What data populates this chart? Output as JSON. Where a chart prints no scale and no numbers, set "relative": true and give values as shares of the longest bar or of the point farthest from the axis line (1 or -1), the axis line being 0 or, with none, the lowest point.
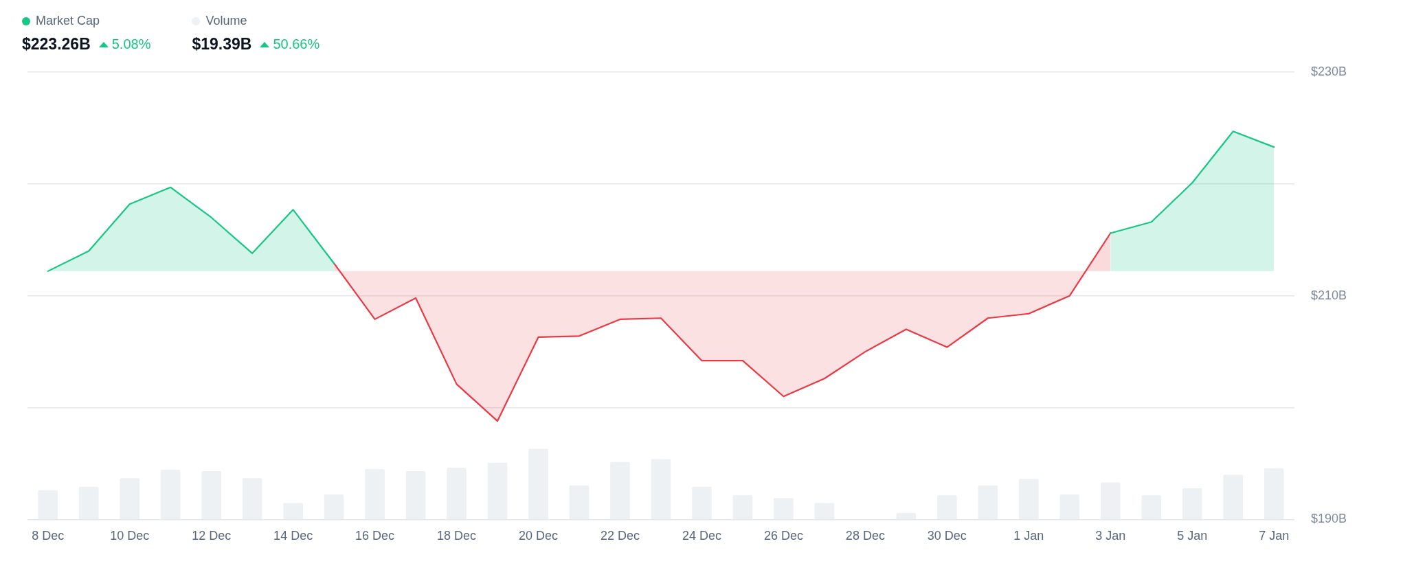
{
  "chart_data": [
    {
      "type": "area",
      "legend": "top left",
      "grid": "y",
      "marker": "none",
      "categories": [
        "8 Dec",
        null,
        "10 Dec",
        null,
        "12 Dec",
        null,
        "14 Dec",
        null,
        "16 Dec",
        null,
        "18 Dec",
        null,
        "20 Dec",
        null,
        "22 Dec",
        null,
        "24 Dec",
        null,
        "26 Dec",
        null,
        "28 Dec",
        null,
        "30 Dec",
        null,
        "1 Jan",
        null,
        "3 Jan",
        null,
        "5 Jan",
        null,
        "7 Jan"
      ],
      "ylim": [
        190,
        230
      ],
      "yticks": [
        {
          "value": 190,
          "label": "$190B"
        },
        {
          "value": 200,
          "label": null
        },
        {
          "value": 210,
          "label": "$210B"
        },
        {
          "value": 220,
          "label": null
        },
        {
          "value": 230,
          "label": "$230B"
        }
      ],
      "series": [
        {
          "name": "Market Cap",
          "color": "#16c784",
          "values": [
            212.2,
            214.0,
            218.2,
            219.7,
            217.0,
            213.8,
            217.7,
            212.9,
            null,
            null,
            null,
            null,
            null,
            null,
            null,
            null,
            null,
            null,
            null,
            null,
            null,
            null,
            null,
            null,
            null,
            null,
            215.6,
            216.6,
            220.1,
            224.7,
            223.3
          ]
        },
        {
          "color": "#ea3943",
          "values": [
            null,
            null,
            null,
            null,
            null,
            null,
            null,
            212.9,
            207.9,
            209.8,
            202.1,
            198.8,
            206.3,
            206.4,
            207.9,
            208.0,
            204.2,
            204.2,
            201.0,
            202.6,
            205.0,
            207.0,
            205.4,
            208.0,
            208.4,
            210.0,
            215.6,
            null,
            null,
            null,
            null
          ]
        }
      ],
      "annotations": [
        "$223.26B",
        "5.08%"
      ]
    },
    {
      "type": "bar",
      "relative": true,
      "legend": "top left",
      "tick_labels": false,
      "categories": [
        null,
        null,
        null,
        null,
        null,
        null,
        null,
        null,
        null,
        null,
        null,
        null,
        null,
        null,
        null,
        null,
        null,
        null,
        null,
        null,
        null,
        null,
        null,
        null,
        null,
        null,
        null,
        null,
        null,
        null,
        null
      ],
      "series": [
        {
          "name": "Volume",
          "color": "#eef1f4",
          "values": [
            0.41,
            0.46,
            0.58,
            0.7,
            0.68,
            0.58,
            0.23,
            0.35,
            0.71,
            0.68,
            0.73,
            0.8,
            1,
            0.48,
            0.81,
            0.85,
            0.46,
            0.34,
            0.3,
            0.23,
            null,
            0.09,
            0.34,
            0.48,
            0.57,
            0.35,
            0.52,
            0.34,
            0.44,
            0.63,
            0.72
          ]
        }
      ],
      "annotations": [
        "$19.39B",
        "50.66%"
      ]
    }
  ]
}
